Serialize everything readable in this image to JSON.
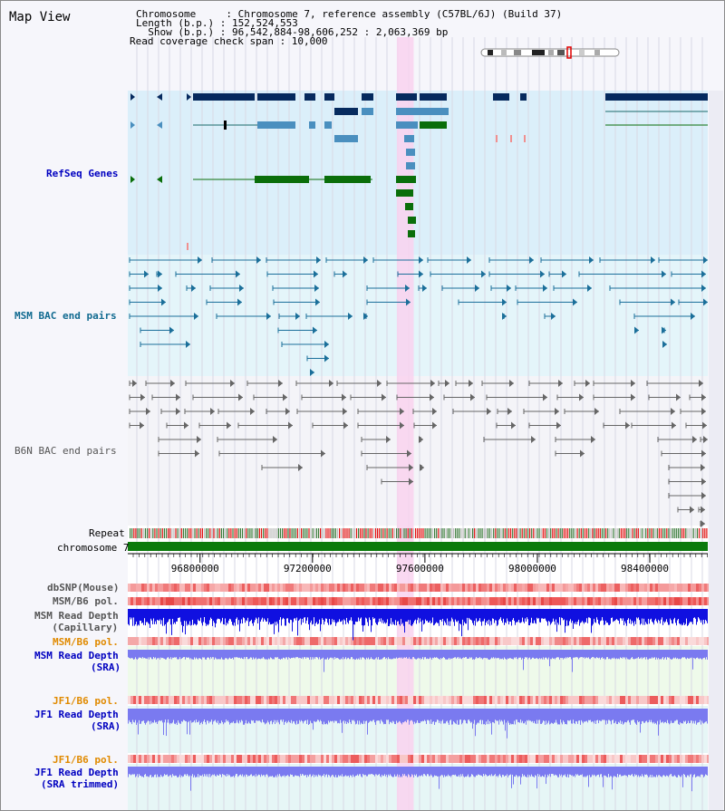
{
  "view": {
    "title": "Map View",
    "chromosome_line": "Chromosome     : Chromosome 7, reference assembly (C57BL/6J) (Build 37)",
    "length_line": "Length (b.p.) : 152,524,553",
    "show_line": "  Show (b.p.) : 96,542,884-98,606,252 : 2,063,369 bp",
    "coverage_line": "Read coverage check span : 10,000"
  },
  "tracks": {
    "refseq": "RefSeq Genes",
    "msm_bac": "MSM BAC end pairs",
    "b6n_bac": "B6N BAC end pairs",
    "repeat": "Repeat",
    "chromosome": "chromosome 7",
    "dbsnp": "dbSNP(Mouse)",
    "msm_pol": "MSM/B6 pol.",
    "msm_depth_cap_1": "MSM Read Depth",
    "msm_depth_cap_2": "(Capillary)",
    "msm_pol_2": "MSM/B6 pol.",
    "msm_depth_sra_1": "MSM Read Depth",
    "msm_depth_sra_2": "(SRA)",
    "jf1_pol": "JF1/B6 pol.",
    "jf1_depth_sra_1": "JF1 Read Depth",
    "jf1_depth_sra_2": "(SRA)",
    "jf1_pol_2": "JF1/B6 pol.",
    "jf1_depth_trim_1": "JF1 Read Depth",
    "jf1_depth_trim_2": "(SRA trimmed)"
  },
  "ruler": {
    "start_bp": 96542884,
    "end_bp": 98606252,
    "tick_labels": [
      "96800000",
      "97200000",
      "97600000",
      "98000000",
      "98400000"
    ],
    "tick_values": [
      96800000,
      97200000,
      97600000,
      98000000,
      98400000
    ]
  },
  "highlight": {
    "start_bp": 97500000,
    "end_bp": 97560000
  },
  "colors": {
    "refseq_bg": "#dbeffa",
    "bac_bg": "#e4f5fa",
    "b6n_bg": "#f4f4f8",
    "highlight": "#f9d2ee",
    "gene_navy": "#062a5e",
    "gene_steel": "#4a8fbf",
    "gene_green": "#0a6e0a",
    "bac_teal": "#1b6f9a",
    "b6n_grey": "#666666",
    "label_blue": "#0000c0",
    "label_teal": "#106a90",
    "label_grey": "#555555",
    "label_orange": "#e08a00",
    "depth_blue": "#1010e0",
    "depth_light": "#7a7af0",
    "pol_red": "#f05050",
    "chrom_green": "#0c7a0c"
  }
}
